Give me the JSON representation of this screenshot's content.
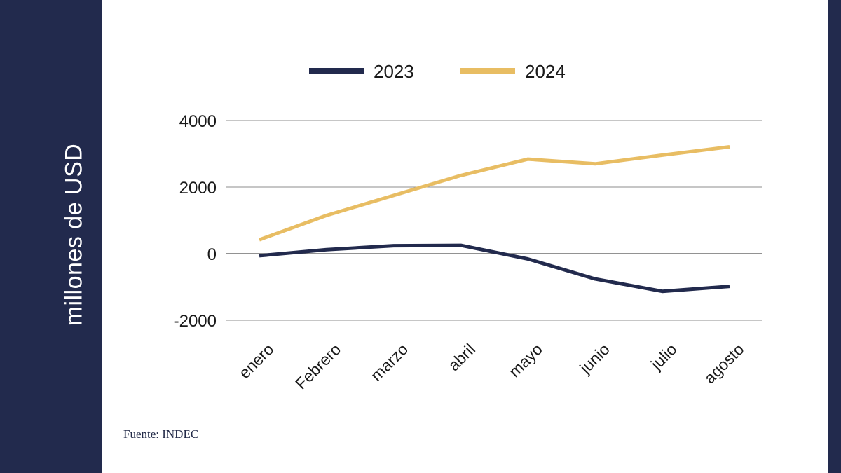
{
  "colors": {
    "panel": "#222a4d",
    "series_2023": "#222a4d",
    "series_2024": "#e8bd63",
    "grid": "#8c8c8c",
    "zero_line": "#6e6e6e"
  },
  "source": "Fuente: INDEC",
  "chart_data": {
    "type": "line",
    "title": "",
    "xlabel": "",
    "ylabel": "millones de USD",
    "categories": [
      "enero",
      "Febrero",
      "marzo",
      "abril",
      "mayo",
      "junio",
      "julio",
      "agosto"
    ],
    "series": [
      {
        "name": "2023",
        "values": [
          -60,
          120,
          240,
          250,
          -160,
          -760,
          -1130,
          -980
        ]
      },
      {
        "name": "2024",
        "values": [
          420,
          1150,
          1750,
          2350,
          2840,
          2700,
          2960,
          3210
        ]
      }
    ],
    "ylim": [
      -2000,
      4000
    ],
    "yticks": [
      "4000",
      "2000",
      "0",
      "-2000"
    ],
    "yticks_values": [
      4000,
      2000,
      0,
      -2000
    ],
    "grid": true,
    "legend": "top"
  }
}
